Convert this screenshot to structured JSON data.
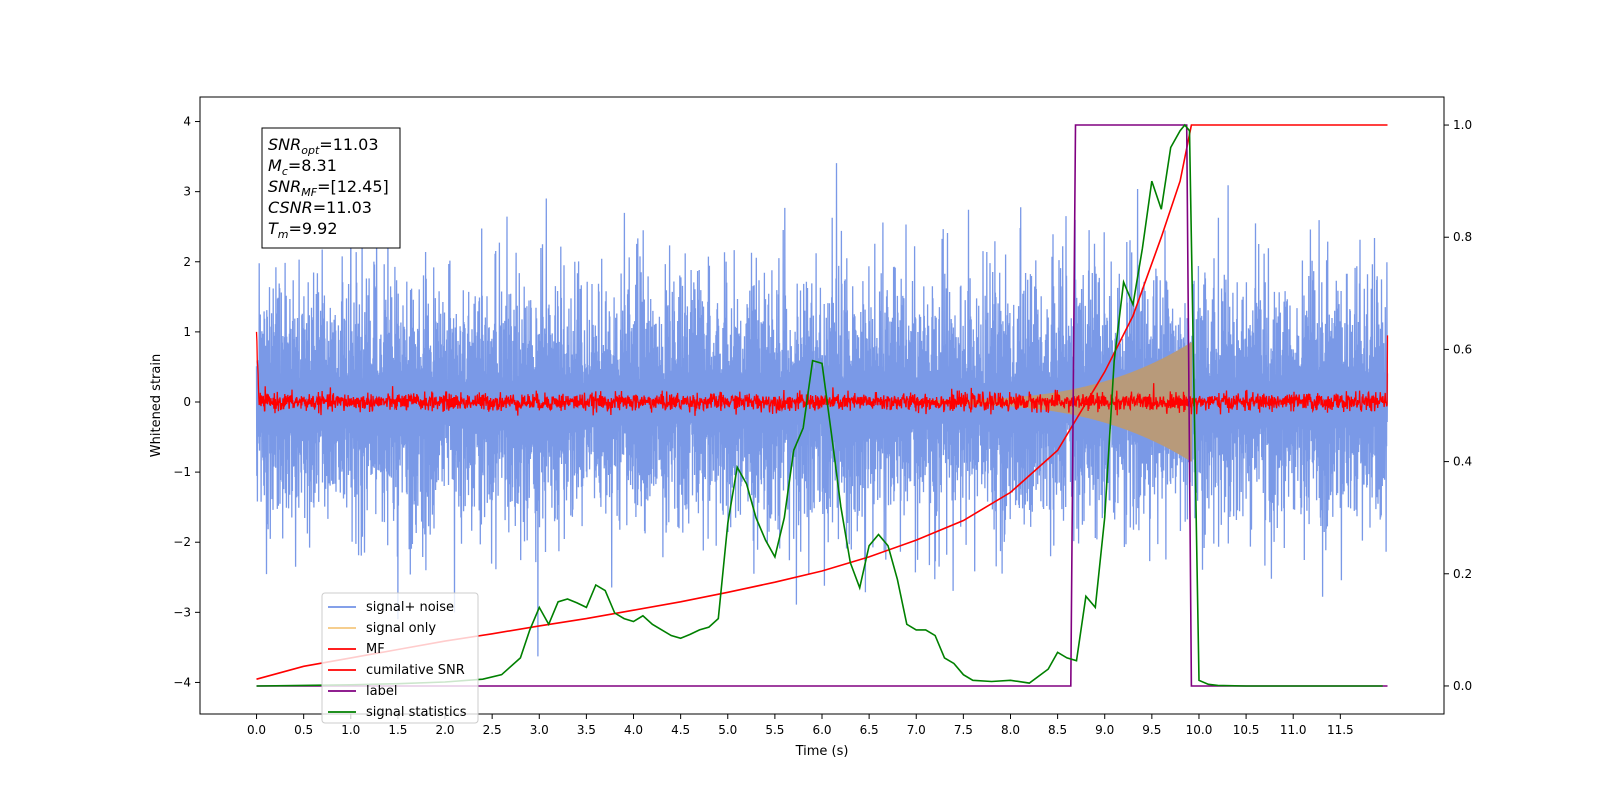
{
  "chart_data": {
    "type": "line",
    "xlabel": "Time (s)",
    "ylabel": "Whitened strain",
    "xlim": [
      -0.6,
      12.6
    ],
    "ylim_left": [
      -4.45,
      4.35
    ],
    "ylim_right": [
      -0.05,
      1.05
    ],
    "x_ticks": [
      "0.0",
      "0.5",
      "1.0",
      "1.5",
      "2.0",
      "2.5",
      "3.0",
      "3.5",
      "4.0",
      "4.5",
      "5.0",
      "5.5",
      "6.0",
      "6.5",
      "7.0",
      "7.5",
      "8.0",
      "8.5",
      "9.0",
      "9.5",
      "10.0",
      "10.5",
      "11.0",
      "11.5"
    ],
    "y_ticks_left": [
      "−4",
      "−3",
      "−2",
      "−1",
      "0",
      "1",
      "2",
      "3",
      "4"
    ],
    "y_ticks_right": [
      "0.0",
      "0.2",
      "0.4",
      "0.6",
      "0.8",
      "1.0"
    ],
    "grid": false,
    "legend_position": "lower-left",
    "annotation": {
      "lines": [
        {
          "base": "SNR",
          "sub": "opt",
          "value": "=11.03"
        },
        {
          "base": "M",
          "sub": "c",
          "value": "=8.31"
        },
        {
          "base": "SNR",
          "sub": "MF",
          "value": "=[12.45]"
        },
        {
          "base": "CSNR",
          "sub": "",
          "value": "=11.03"
        },
        {
          "base": "T",
          "sub": "m",
          "value": "=9.92"
        }
      ]
    },
    "series": [
      {
        "name": "signal+ noise",
        "axis": "left",
        "color": "#7393e6",
        "kind": "noise",
        "range": [
          0.0,
          12.0
        ],
        "typical_amplitude": 1.05,
        "max": 3.92,
        "min": -4.2
      },
      {
        "name": "signal only",
        "axis": "left",
        "color": "#f5c77e",
        "kind": "chirp",
        "range": [
          7.0,
          9.92
        ],
        "amplitude_start": 0.03,
        "amplitude_end": 0.85
      },
      {
        "name": "MF",
        "axis": "left",
        "color": "#ff0000",
        "kind": "noise",
        "range": [
          0.0,
          12.0
        ],
        "typical_amplitude": 0.09,
        "edge_start": 1.0,
        "edge_end": 0.95
      },
      {
        "name": "cumilative SNR",
        "axis": "right",
        "color": "#ff0000",
        "x": [
          0.0,
          0.5,
          1.0,
          1.5,
          2.0,
          2.5,
          3.0,
          3.5,
          4.0,
          4.5,
          5.0,
          5.5,
          6.0,
          6.5,
          7.0,
          7.5,
          8.0,
          8.5,
          9.0,
          9.3,
          9.6,
          9.8,
          9.92,
          10.0,
          12.0
        ],
        "y": [
          0.012,
          0.035,
          0.05,
          0.065,
          0.08,
          0.093,
          0.107,
          0.12,
          0.135,
          0.15,
          0.167,
          0.185,
          0.205,
          0.23,
          0.26,
          0.295,
          0.345,
          0.42,
          0.56,
          0.66,
          0.8,
          0.9,
          1.0,
          1.0,
          1.0
        ]
      },
      {
        "name": "label",
        "axis": "right",
        "color": "#800080",
        "x": [
          0.0,
          8.64,
          8.69,
          9.87,
          9.92,
          12.0
        ],
        "y": [
          0.0,
          0.0,
          1.0,
          1.0,
          0.0,
          0.0
        ]
      },
      {
        "name": "signal statistics",
        "axis": "right",
        "color": "#008000",
        "x": [
          0.0,
          0.5,
          1.0,
          1.5,
          2.0,
          2.4,
          2.6,
          2.8,
          2.9,
          3.0,
          3.1,
          3.2,
          3.3,
          3.4,
          3.5,
          3.6,
          3.7,
          3.8,
          3.9,
          4.0,
          4.1,
          4.2,
          4.3,
          4.4,
          4.5,
          4.6,
          4.7,
          4.8,
          4.9,
          5.0,
          5.1,
          5.2,
          5.3,
          5.4,
          5.5,
          5.6,
          5.7,
          5.8,
          5.9,
          6.0,
          6.1,
          6.2,
          6.3,
          6.4,
          6.5,
          6.6,
          6.7,
          6.8,
          6.9,
          7.0,
          7.1,
          7.2,
          7.3,
          7.4,
          7.5,
          7.6,
          7.8,
          8.0,
          8.2,
          8.4,
          8.5,
          8.6,
          8.7,
          8.8,
          8.9,
          9.0,
          9.1,
          9.2,
          9.3,
          9.4,
          9.5,
          9.6,
          9.7,
          9.8,
          9.85,
          9.9,
          10.0,
          10.1,
          10.2,
          10.5,
          11.0,
          11.5,
          11.95
        ],
        "y": [
          0.0,
          0.001,
          0.002,
          0.004,
          0.007,
          0.012,
          0.02,
          0.05,
          0.1,
          0.14,
          0.11,
          0.15,
          0.155,
          0.148,
          0.14,
          0.18,
          0.17,
          0.13,
          0.12,
          0.115,
          0.125,
          0.11,
          0.1,
          0.09,
          0.085,
          0.092,
          0.1,
          0.105,
          0.12,
          0.29,
          0.39,
          0.36,
          0.3,
          0.26,
          0.23,
          0.3,
          0.42,
          0.46,
          0.58,
          0.575,
          0.45,
          0.32,
          0.22,
          0.175,
          0.25,
          0.27,
          0.25,
          0.19,
          0.11,
          0.1,
          0.1,
          0.09,
          0.05,
          0.04,
          0.02,
          0.01,
          0.008,
          0.01,
          0.005,
          0.03,
          0.06,
          0.05,
          0.045,
          0.16,
          0.14,
          0.3,
          0.58,
          0.72,
          0.68,
          0.78,
          0.9,
          0.85,
          0.96,
          0.99,
          1.0,
          0.99,
          0.01,
          0.003,
          0.001,
          0.0,
          0.0,
          0.0,
          0.0
        ]
      }
    ]
  }
}
